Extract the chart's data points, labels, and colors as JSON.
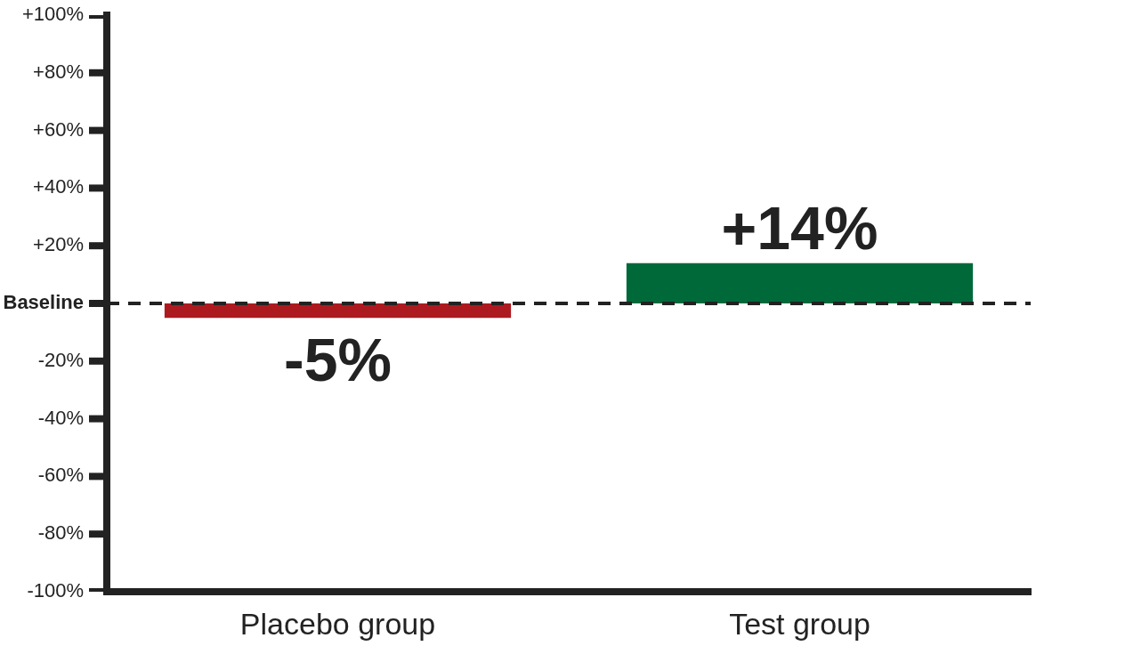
{
  "chart_data": {
    "type": "bar",
    "categories": [
      "Placebo group",
      "Test group"
    ],
    "values": [
      -5,
      14
    ],
    "colors": [
      "#ac1a1f",
      "#00693a"
    ],
    "value_labels": [
      "-5%",
      "+14%"
    ],
    "ylim": [
      -100,
      100
    ],
    "yticks": [
      {
        "value": -100,
        "label": "-100%"
      },
      {
        "value": -80,
        "label": "-80%"
      },
      {
        "value": -60,
        "label": "-60%"
      },
      {
        "value": -40,
        "label": "-40%"
      },
      {
        "value": -20,
        "label": "-20%"
      },
      {
        "value": 0,
        "label": "Baseline"
      },
      {
        "value": 20,
        "label": "+20%"
      },
      {
        "value": 40,
        "label": "+40%"
      },
      {
        "value": 60,
        "label": "+60%"
      },
      {
        "value": 80,
        "label": "+80%"
      },
      {
        "value": 100,
        "label": "+100%"
      }
    ],
    "ref_lines": [
      {
        "axis": "y",
        "value": 0,
        "color": "#222222",
        "line_style": "dashed"
      }
    ],
    "grid": false,
    "legend": false
  }
}
